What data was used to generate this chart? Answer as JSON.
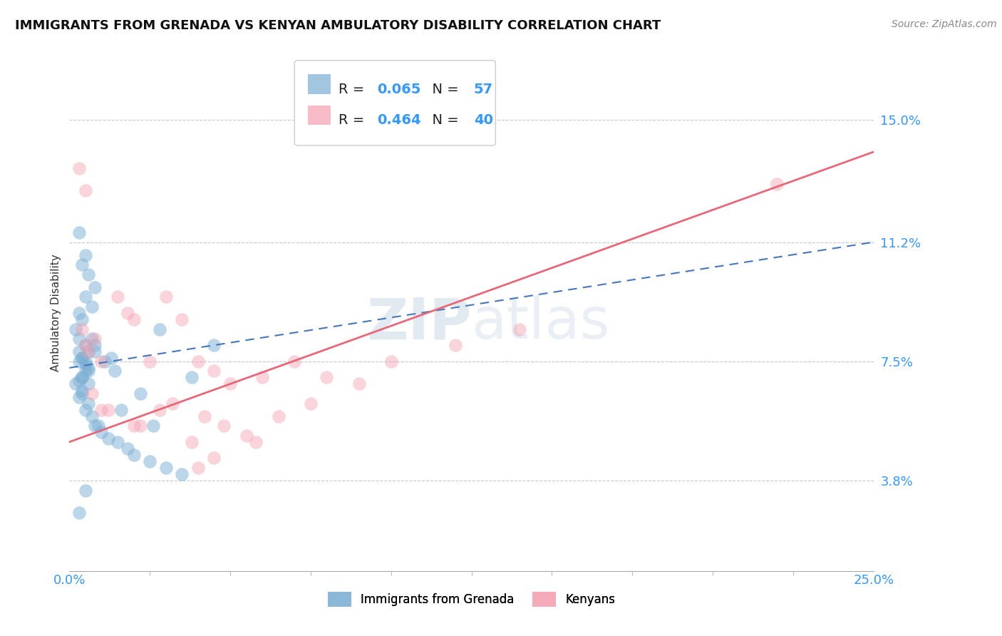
{
  "title": "IMMIGRANTS FROM GRENADA VS KENYAN AMBULATORY DISABILITY CORRELATION CHART",
  "source_text": "Source: ZipAtlas.com",
  "ylabel": "Ambulatory Disability",
  "xlim": [
    0.0,
    25.0
  ],
  "ylim": [
    1.0,
    17.0
  ],
  "yticks": [
    3.8,
    7.5,
    11.2,
    15.0
  ],
  "xticks_major": [
    0.0,
    25.0
  ],
  "xtick_minor": [
    0,
    2.5,
    5.0,
    7.5,
    10.0,
    12.5,
    15.0,
    17.5,
    20.0,
    22.5,
    25.0
  ],
  "ytick_labels": [
    "3.8%",
    "7.5%",
    "11.2%",
    "15.0%"
  ],
  "blue_color": "#7bafd4",
  "pink_color": "#f4a0b0",
  "blue_line_color": "#4477bb",
  "pink_line_color": "#e8687a",
  "grid_color": "#c8c8c8",
  "background_color": "#ffffff",
  "watermark_zip": "ZIP",
  "watermark_atlas": "atlas",
  "legend_r1": "0.065",
  "legend_n1": "57",
  "legend_r2": "0.464",
  "legend_n2": "40",
  "blue_scatter_x": [
    0.3,
    0.5,
    0.4,
    0.6,
    0.8,
    0.5,
    0.7,
    0.3,
    0.4,
    0.2,
    0.3,
    0.5,
    0.6,
    0.4,
    0.3,
    0.5,
    0.6,
    0.8,
    0.4,
    0.3,
    0.2,
    0.4,
    0.3,
    0.5,
    0.6,
    0.4,
    0.5,
    0.3,
    0.4,
    0.6,
    0.5,
    0.7,
    0.8,
    1.0,
    1.2,
    1.5,
    1.8,
    2.0,
    2.5,
    3.0,
    3.5,
    1.3,
    2.2,
    1.6,
    0.9,
    0.7,
    1.1,
    2.8,
    0.3,
    1.4,
    0.4,
    0.6,
    0.8,
    3.8,
    4.5,
    2.6,
    0.5
  ],
  "blue_scatter_y": [
    11.5,
    10.8,
    10.5,
    10.2,
    9.8,
    9.5,
    9.2,
    9.0,
    8.8,
    8.5,
    8.2,
    8.0,
    7.8,
    7.6,
    7.5,
    7.4,
    7.2,
    7.8,
    7.0,
    6.9,
    6.8,
    6.6,
    6.4,
    7.5,
    7.3,
    7.6,
    7.2,
    7.8,
    6.5,
    6.2,
    6.0,
    5.8,
    5.5,
    5.3,
    5.1,
    5.0,
    4.8,
    4.6,
    4.4,
    4.2,
    4.0,
    7.6,
    6.5,
    6.0,
    5.5,
    8.2,
    7.5,
    8.5,
    2.8,
    7.2,
    7.0,
    6.8,
    8.0,
    7.0,
    8.0,
    5.5,
    3.5
  ],
  "pink_scatter_x": [
    0.4,
    0.5,
    0.6,
    0.8,
    1.0,
    1.5,
    1.8,
    2.0,
    2.5,
    3.0,
    3.5,
    4.0,
    4.5,
    5.0,
    6.0,
    7.0,
    7.5,
    8.0,
    9.0,
    10.0,
    12.0,
    14.0,
    2.8,
    3.2,
    4.2,
    4.8,
    5.5,
    6.5,
    0.7,
    1.2,
    2.2,
    3.8,
    4.5,
    5.8,
    0.3,
    0.5,
    1.0,
    2.0,
    4.0,
    22.0
  ],
  "pink_scatter_y": [
    8.5,
    8.0,
    7.8,
    8.2,
    7.5,
    9.5,
    9.0,
    8.8,
    7.5,
    9.5,
    8.8,
    7.5,
    7.2,
    6.8,
    7.0,
    7.5,
    6.2,
    7.0,
    6.8,
    7.5,
    8.0,
    8.5,
    6.0,
    6.2,
    5.8,
    5.5,
    5.2,
    5.8,
    6.5,
    6.0,
    5.5,
    5.0,
    4.5,
    5.0,
    13.5,
    12.8,
    6.0,
    5.5,
    4.2,
    13.0
  ],
  "blue_line_start_x": 0.0,
  "blue_line_start_y": 7.3,
  "blue_line_end_x": 25.0,
  "blue_line_end_y": 11.2,
  "pink_line_start_x": 0.0,
  "pink_line_start_y": 5.0,
  "pink_line_end_x": 25.0,
  "pink_line_end_y": 14.0
}
